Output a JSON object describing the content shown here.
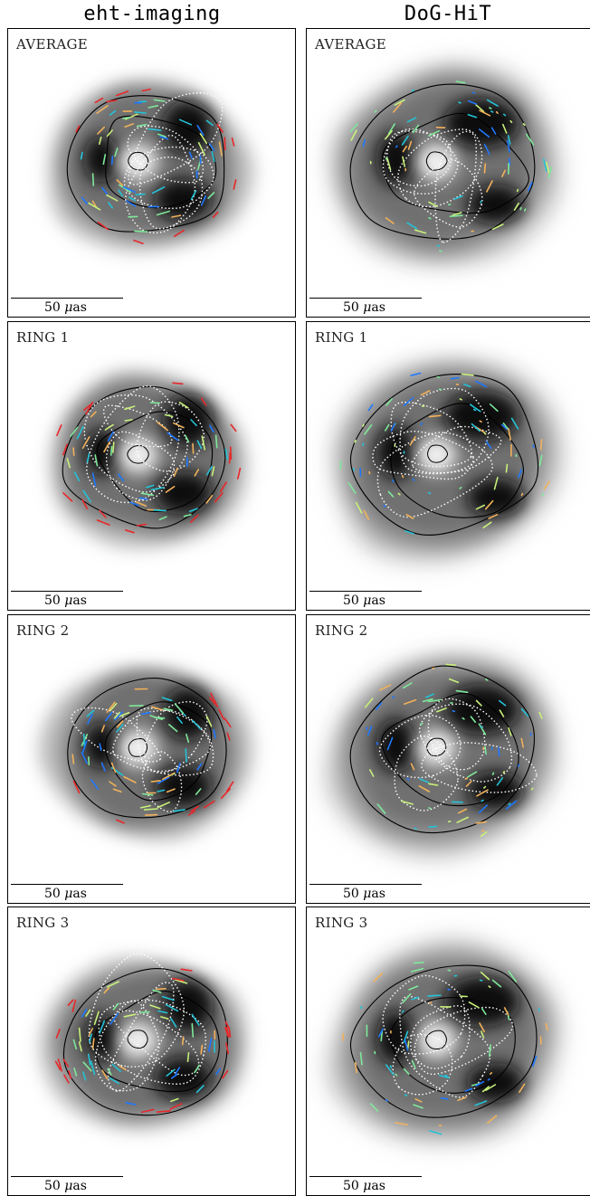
{
  "columns": [
    "eht-imaging",
    "DoG-HiT"
  ],
  "scale_label": {
    "value": "50",
    "unit_symbol": "μ",
    "unit_rest": "as"
  },
  "panels": [
    {
      "method": "eht-imaging",
      "label": "AVERAGE"
    },
    {
      "method": "DoG-HiT",
      "label": "AVERAGE"
    },
    {
      "method": "eht-imaging",
      "label": "RING 1"
    },
    {
      "method": "DoG-HiT",
      "label": "RING 1"
    },
    {
      "method": "eht-imaging",
      "label": "RING 2"
    },
    {
      "method": "DoG-HiT",
      "label": "RING 2"
    },
    {
      "method": "eht-imaging",
      "label": "RING 3"
    },
    {
      "method": "DoG-HiT",
      "label": "RING 3"
    }
  ],
  "colors": {
    "contour": "#000000",
    "dotted_contour": "#ffffff",
    "evpa_ticks": [
      "#1e78ff",
      "#23c3d8",
      "#7ee89a",
      "#c8f07a",
      "#f2b15a",
      "#e8272a"
    ]
  }
}
